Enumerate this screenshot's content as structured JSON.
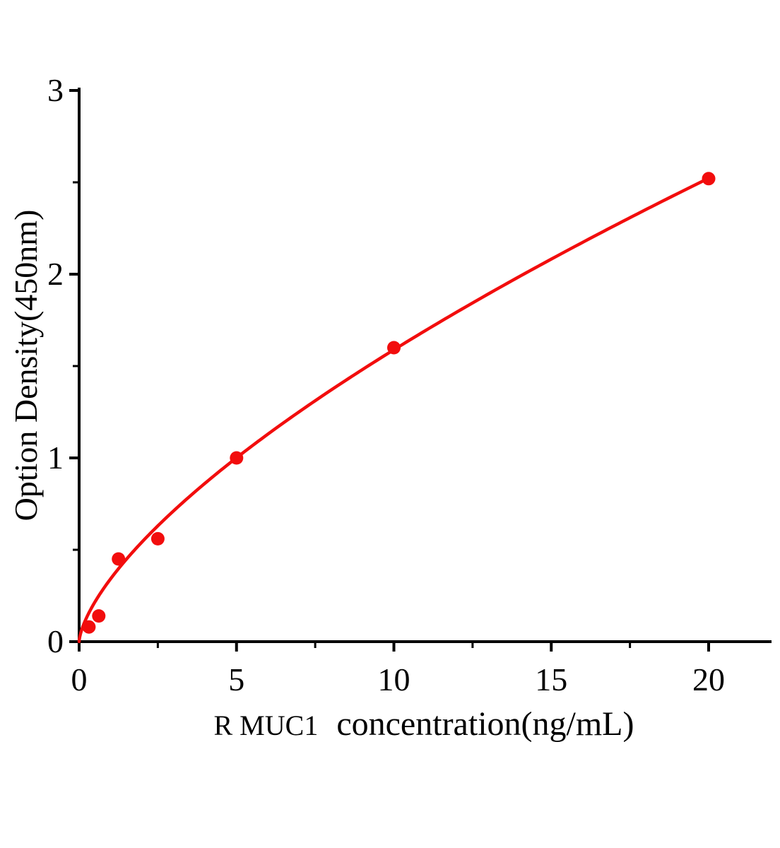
{
  "chart_data": {
    "type": "scatter",
    "title": "",
    "xlabel_prefix": "R MUC1",
    "xlabel_main": "concentration(ng/mL)",
    "ylabel": "Option Density(450nm)",
    "points": [
      {
        "x": 0.313,
        "y": 0.08
      },
      {
        "x": 0.625,
        "y": 0.14
      },
      {
        "x": 1.25,
        "y": 0.45
      },
      {
        "x": 2.5,
        "y": 0.56
      },
      {
        "x": 5,
        "y": 1.0
      },
      {
        "x": 10,
        "y": 1.6
      },
      {
        "x": 20,
        "y": 2.52
      }
    ],
    "fit_curve": {
      "type": "power",
      "equation": "y = a * x^b",
      "a": 0.342,
      "b": 0.667,
      "x_start": 0,
      "x_end": 20
    },
    "x_axis": {
      "min": 0,
      "max": 22,
      "major_ticks": [
        0,
        5,
        10,
        15,
        20
      ],
      "minor_ticks": [
        2.5,
        7.5,
        12.5,
        17.5
      ]
    },
    "y_axis": {
      "min": 0,
      "max": 3,
      "major_ticks": [
        0,
        1,
        2,
        3
      ],
      "minor_ticks": [
        0.5,
        1.5,
        2.5
      ]
    },
    "legend": "none",
    "grid": false,
    "colors": {
      "series": "#f20d0d",
      "axis": "#000000",
      "background": "#ffffff"
    }
  }
}
